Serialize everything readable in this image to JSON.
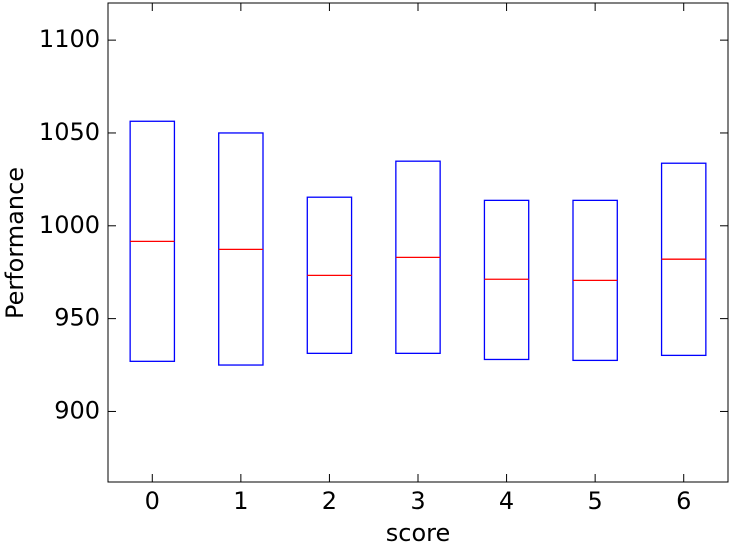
{
  "chart_data": {
    "type": "box",
    "x_label": "score",
    "y_label": "Performance",
    "categories": [
      "0",
      "1",
      "2",
      "3",
      "4",
      "5",
      "6"
    ],
    "q1": [
      927,
      925,
      931.3,
      931.3,
      928,
      927.5,
      930.2
    ],
    "median": [
      991.6,
      987.3,
      973.3,
      983,
      971.2,
      970.6,
      982
    ],
    "q3": [
      1056.3,
      1050,
      1015.4,
      1034.8,
      1013.7,
      1013.7,
      1033.7
    ],
    "box_color": "#0000ff",
    "median_color": "#ff0000",
    "ylim": [
      862,
      1120
    ],
    "yticks": [
      900,
      950,
      1000,
      1050,
      1100
    ],
    "grid": false
  }
}
